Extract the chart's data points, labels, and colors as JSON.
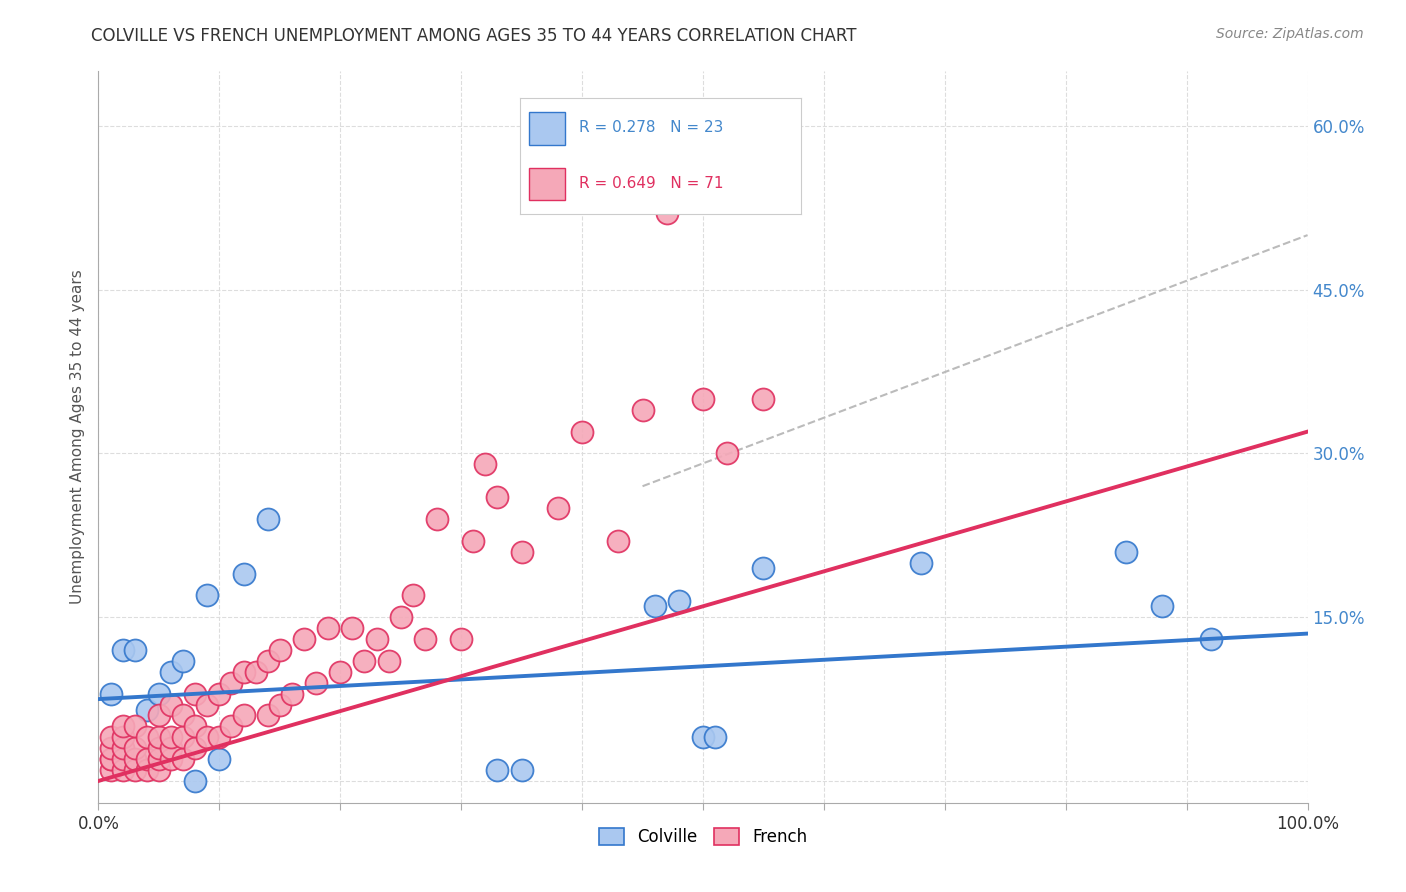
{
  "title": "COLVILLE VS FRENCH UNEMPLOYMENT AMONG AGES 35 TO 44 YEARS CORRELATION CHART",
  "source": "Source: ZipAtlas.com",
  "ylabel": "Unemployment Among Ages 35 to 44 years",
  "xlim": [
    0,
    1.0
  ],
  "ylim": [
    -0.02,
    0.65
  ],
  "xticks": [
    0.0,
    0.1,
    0.2,
    0.3,
    0.4,
    0.5,
    0.6,
    0.7,
    0.8,
    0.9,
    1.0
  ],
  "xticklabels": [
    "0.0%",
    "",
    "",
    "",
    "",
    "",
    "",
    "",
    "",
    "",
    "100.0%"
  ],
  "ytick_positions": [
    0.0,
    0.15,
    0.3,
    0.45,
    0.6
  ],
  "yticklabels": [
    "",
    "15.0%",
    "30.0%",
    "45.0%",
    "60.0%"
  ],
  "colville_R": 0.278,
  "colville_N": 23,
  "french_R": 0.649,
  "french_N": 71,
  "colville_color": "#aac8f0",
  "french_color": "#f5a8b8",
  "colville_line_color": "#3377cc",
  "french_line_color": "#e03060",
  "trendline_color": "#bbbbbb",
  "background_color": "#ffffff",
  "grid_color": "#dddddd",
  "colville_x": [
    0.01,
    0.02,
    0.03,
    0.04,
    0.05,
    0.06,
    0.07,
    0.08,
    0.09,
    0.12,
    0.14,
    0.33,
    0.35,
    0.46,
    0.48,
    0.5,
    0.51,
    0.55,
    0.68,
    0.85,
    0.88,
    0.92,
    0.1
  ],
  "colville_y": [
    0.08,
    0.12,
    0.12,
    0.065,
    0.08,
    0.1,
    0.11,
    0.0,
    0.17,
    0.19,
    0.24,
    0.01,
    0.01,
    0.16,
    0.165,
    0.04,
    0.04,
    0.195,
    0.2,
    0.21,
    0.16,
    0.13,
    0.02
  ],
  "french_x": [
    0.01,
    0.01,
    0.01,
    0.01,
    0.01,
    0.02,
    0.02,
    0.02,
    0.02,
    0.02,
    0.03,
    0.03,
    0.03,
    0.03,
    0.04,
    0.04,
    0.04,
    0.05,
    0.05,
    0.05,
    0.05,
    0.05,
    0.06,
    0.06,
    0.06,
    0.06,
    0.07,
    0.07,
    0.07,
    0.08,
    0.08,
    0.08,
    0.09,
    0.09,
    0.1,
    0.1,
    0.11,
    0.11,
    0.12,
    0.12,
    0.13,
    0.14,
    0.14,
    0.15,
    0.15,
    0.16,
    0.17,
    0.18,
    0.19,
    0.2,
    0.21,
    0.22,
    0.23,
    0.24,
    0.25,
    0.26,
    0.27,
    0.28,
    0.3,
    0.31,
    0.32,
    0.33,
    0.35,
    0.38,
    0.4,
    0.43,
    0.45,
    0.47,
    0.5,
    0.52,
    0.55
  ],
  "french_y": [
    0.01,
    0.02,
    0.02,
    0.03,
    0.04,
    0.01,
    0.02,
    0.03,
    0.04,
    0.05,
    0.01,
    0.02,
    0.03,
    0.05,
    0.01,
    0.02,
    0.04,
    0.01,
    0.02,
    0.03,
    0.04,
    0.06,
    0.02,
    0.03,
    0.04,
    0.07,
    0.02,
    0.04,
    0.06,
    0.03,
    0.05,
    0.08,
    0.04,
    0.07,
    0.04,
    0.08,
    0.05,
    0.09,
    0.06,
    0.1,
    0.1,
    0.06,
    0.11,
    0.07,
    0.12,
    0.08,
    0.13,
    0.09,
    0.14,
    0.1,
    0.14,
    0.11,
    0.13,
    0.11,
    0.15,
    0.17,
    0.13,
    0.24,
    0.13,
    0.22,
    0.29,
    0.26,
    0.21,
    0.25,
    0.32,
    0.22,
    0.34,
    0.52,
    0.35,
    0.3,
    0.35
  ],
  "colville_trendline_x": [
    0.0,
    1.0
  ],
  "colville_trendline_y": [
    0.075,
    0.135
  ],
  "french_trendline_x": [
    0.0,
    1.0
  ],
  "french_trendline_y": [
    0.0,
    0.32
  ],
  "ref_line_x": [
    0.45,
    1.0
  ],
  "ref_line_y": [
    0.27,
    0.5
  ]
}
